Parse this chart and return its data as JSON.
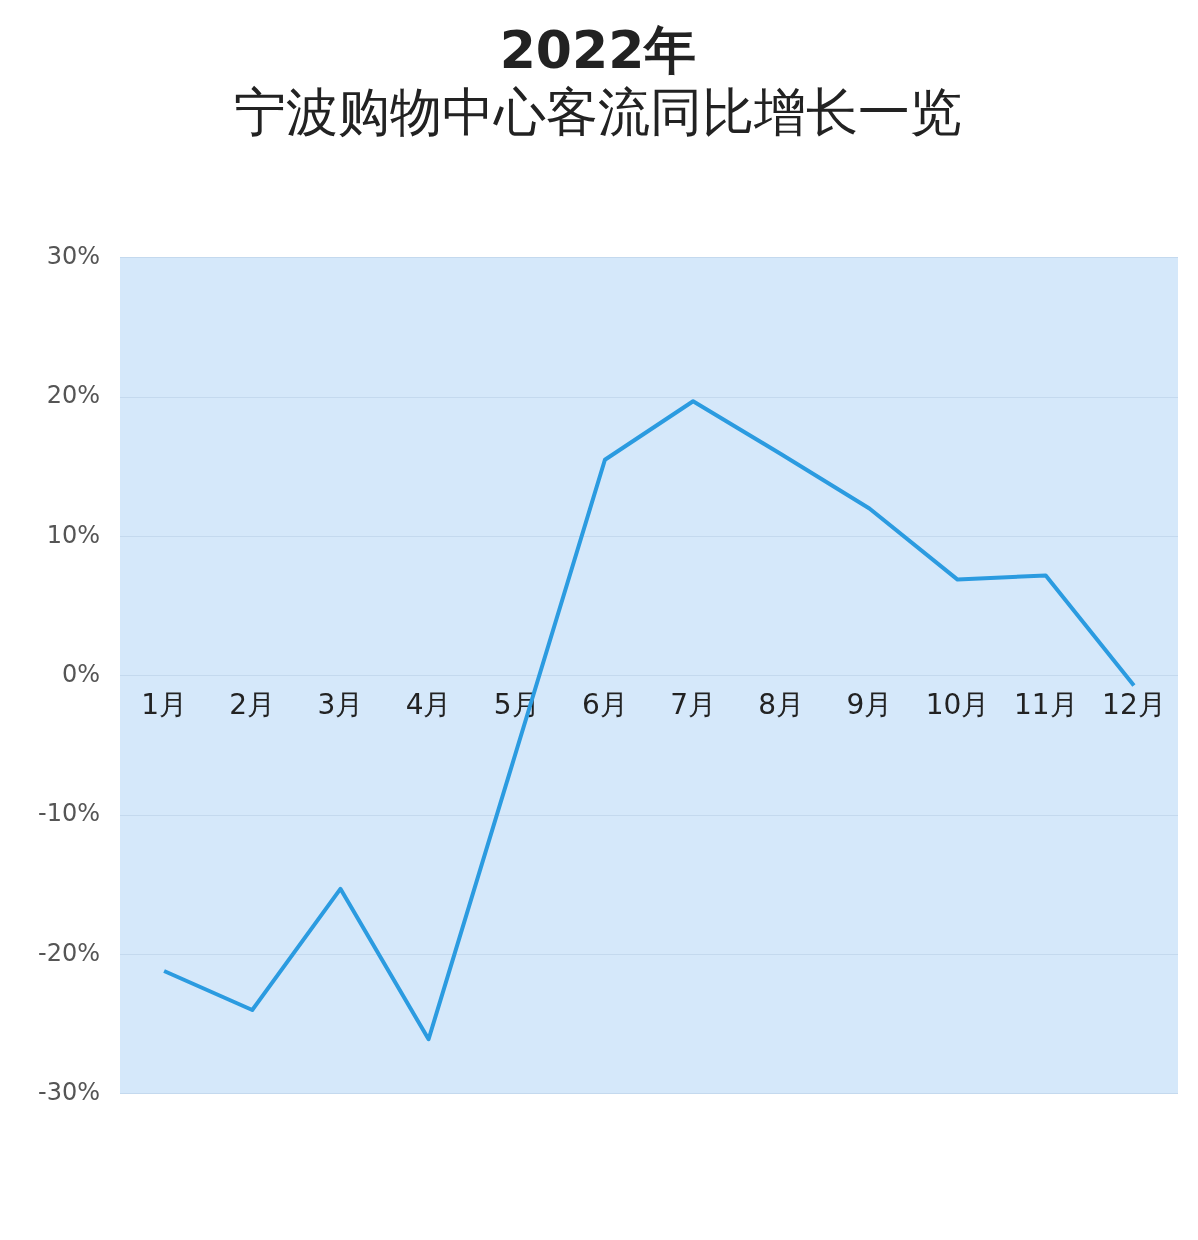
{
  "chart_data": {
    "type": "line",
    "title": "2022年",
    "subtitle": "宁波购物中心客流同比增长一览",
    "categories": [
      "1月",
      "2月",
      "3月",
      "4月",
      "5月",
      "6月",
      "7月",
      "8月",
      "9月",
      "10月",
      "11月",
      "12月"
    ],
    "series": [
      {
        "color": "#2b9be0",
        "values": [
          -21.2,
          -24.0,
          -15.3,
          -26.1,
          -5.3,
          15.5,
          19.7,
          15.9,
          12.0,
          6.9,
          7.2,
          -0.7
        ]
      }
    ],
    "ylim": [
      -30,
      30
    ],
    "yticks": [
      {
        "value": -30,
        "label": "-30%"
      },
      {
        "value": -20,
        "label": "-20%"
      },
      {
        "value": -10,
        "label": "-10%"
      },
      {
        "value": 0,
        "label": "0%"
      },
      {
        "value": 10,
        "label": "10%"
      },
      {
        "value": 20,
        "label": "20%"
      },
      {
        "value": 30,
        "label": "30%"
      }
    ],
    "grid": "y",
    "legend": false,
    "marker": "none",
    "line_style": "solid"
  }
}
